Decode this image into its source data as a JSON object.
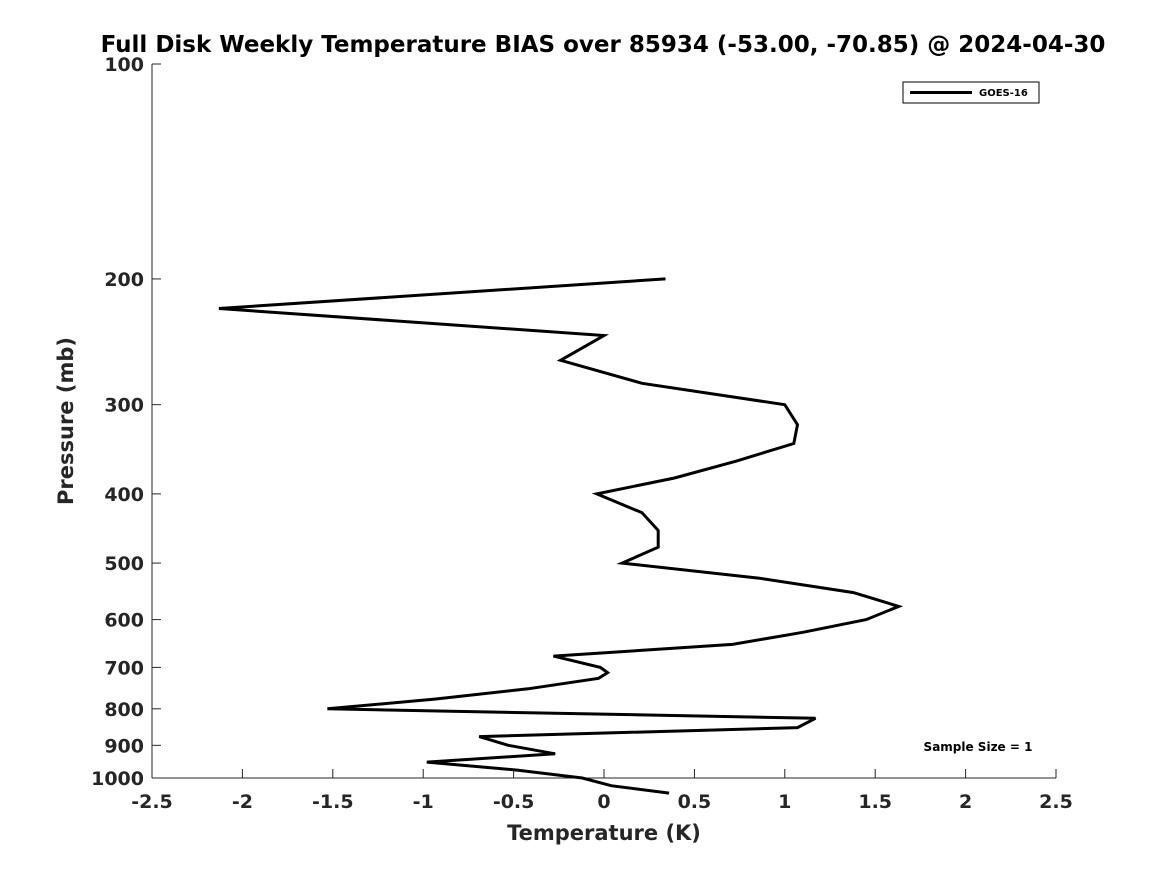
{
  "chart_data": {
    "type": "line",
    "title": "Full Disk Weekly Temperature BIAS over 85934 (-53.00, -70.85) @ 2024-04-30",
    "xlabel": "Temperature (K)",
    "ylabel": "Pressure (mb)",
    "xlim": [
      -2.5,
      2.5
    ],
    "ylim": [
      100,
      1000
    ],
    "y_scale": "log",
    "y_reversed": true,
    "grid": false,
    "legend_position": "top-right",
    "x_ticks": [
      -2.5,
      -2,
      -1.5,
      -1,
      -0.5,
      0,
      0.5,
      1,
      1.5,
      2,
      2.5
    ],
    "x_tick_labels": [
      "-2.5",
      "-2",
      "-1.5",
      "-1",
      "-0.5",
      "0",
      "0.5",
      "1",
      "1.5",
      "2",
      "2.5"
    ],
    "y_ticks": [
      100,
      200,
      300,
      400,
      500,
      600,
      700,
      800,
      900,
      1000
    ],
    "y_tick_labels": [
      "100",
      "200",
      "300",
      "400",
      "500",
      "600",
      "700",
      "800",
      "900",
      "1000"
    ],
    "series": [
      {
        "name": "GOES-16",
        "color": "#000000",
        "points": [
          {
            "x": 0.34,
            "y": 200
          },
          {
            "x": -2.13,
            "y": 220
          },
          {
            "x": 0.0,
            "y": 240
          },
          {
            "x": -0.24,
            "y": 260
          },
          {
            "x": 0.21,
            "y": 280
          },
          {
            "x": 1.0,
            "y": 300
          },
          {
            "x": 1.07,
            "y": 320
          },
          {
            "x": 1.05,
            "y": 340
          },
          {
            "x": 0.73,
            "y": 360
          },
          {
            "x": 0.39,
            "y": 380
          },
          {
            "x": -0.04,
            "y": 400
          },
          {
            "x": 0.21,
            "y": 425
          },
          {
            "x": 0.3,
            "y": 450
          },
          {
            "x": 0.3,
            "y": 475
          },
          {
            "x": 0.1,
            "y": 500
          },
          {
            "x": 0.86,
            "y": 525
          },
          {
            "x": 1.38,
            "y": 550
          },
          {
            "x": 1.63,
            "y": 575
          },
          {
            "x": 1.45,
            "y": 600
          },
          {
            "x": 1.1,
            "y": 625
          },
          {
            "x": 0.71,
            "y": 650
          },
          {
            "x": -0.28,
            "y": 675
          },
          {
            "x": -0.02,
            "y": 700
          },
          {
            "x": 0.02,
            "y": 712
          },
          {
            "x": -0.03,
            "y": 725
          },
          {
            "x": -0.42,
            "y": 750
          },
          {
            "x": -0.93,
            "y": 775
          },
          {
            "x": -1.53,
            "y": 800
          },
          {
            "x": 1.17,
            "y": 825
          },
          {
            "x": 1.07,
            "y": 850
          },
          {
            "x": -0.69,
            "y": 875
          },
          {
            "x": -0.53,
            "y": 900
          },
          {
            "x": -0.27,
            "y": 925
          },
          {
            "x": -0.98,
            "y": 950
          },
          {
            "x": -0.48,
            "y": 975
          },
          {
            "x": -0.12,
            "y": 1000
          },
          {
            "x": 0.04,
            "y": 1025
          },
          {
            "x": 0.36,
            "y": 1050
          }
        ]
      }
    ],
    "annotations": [
      {
        "text": "Sample Size = 1"
      }
    ]
  }
}
